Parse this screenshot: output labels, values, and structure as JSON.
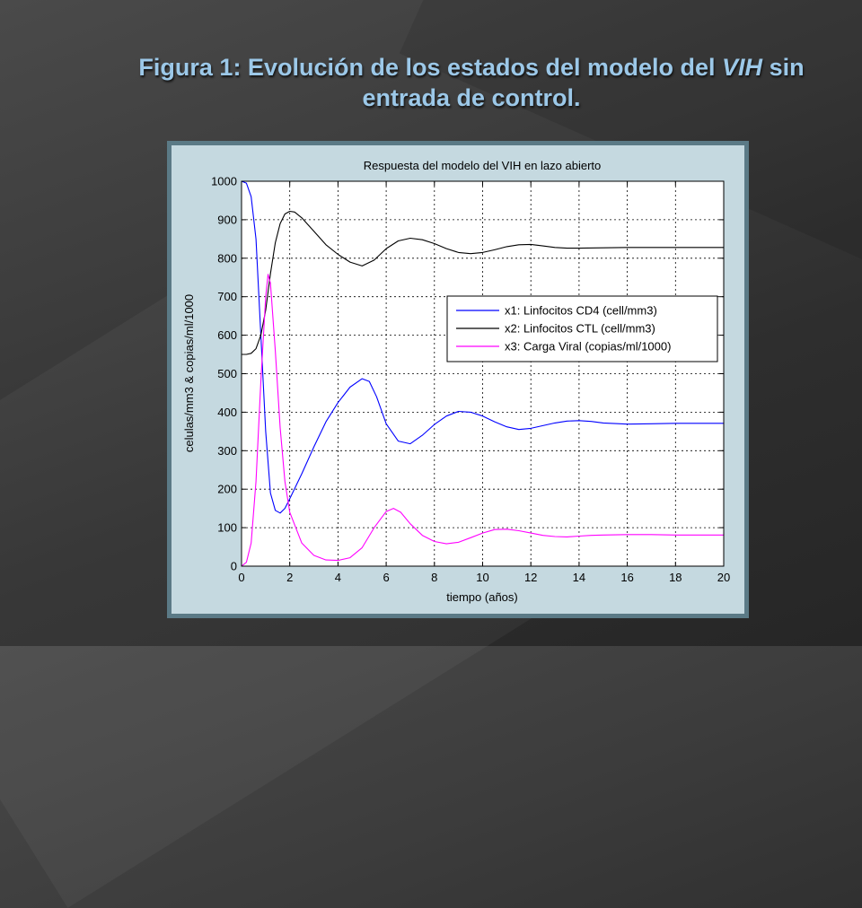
{
  "slide": {
    "title_part1": "Figura 1: Evolución de los estados del modelo del ",
    "title_italic": "VIH",
    "title_part2": " sin",
    "title_line2": "entrada de control."
  },
  "chart_data": {
    "type": "line",
    "title": "Respuesta del modelo del VIH en lazo abierto",
    "xlabel": "tiempo (años)",
    "ylabel": "celulas/mm3 & copias/ml/1000",
    "xlim": [
      0,
      20
    ],
    "ylim": [
      0,
      1000
    ],
    "xticks": [
      0,
      2,
      4,
      6,
      8,
      10,
      12,
      14,
      16,
      18,
      20
    ],
    "yticks": [
      0,
      100,
      200,
      300,
      400,
      500,
      600,
      700,
      800,
      900,
      1000
    ],
    "grid": true,
    "legend_position": "center-right",
    "series": [
      {
        "name": "x1: Linfocitos CD4 (cell/mm3)",
        "color": "#0000ff",
        "x": [
          0,
          0.2,
          0.4,
          0.6,
          0.8,
          1.0,
          1.2,
          1.4,
          1.6,
          1.8,
          2.0,
          2.5,
          3.0,
          3.5,
          4.0,
          4.5,
          5.0,
          5.3,
          5.6,
          6.0,
          6.5,
          7.0,
          7.5,
          8.0,
          8.5,
          9.0,
          9.5,
          10.0,
          10.5,
          11.0,
          11.5,
          12.0,
          12.5,
          13.0,
          13.5,
          14.0,
          14.5,
          15.0,
          16.0,
          17.0,
          18.0,
          19.0,
          20.0
        ],
        "y": [
          1000,
          995,
          960,
          850,
          600,
          350,
          190,
          145,
          138,
          150,
          175,
          240,
          310,
          375,
          425,
          465,
          487,
          480,
          440,
          370,
          325,
          318,
          340,
          368,
          390,
          402,
          400,
          390,
          375,
          362,
          355,
          358,
          365,
          372,
          377,
          378,
          376,
          372,
          369,
          370,
          371,
          371,
          371
        ]
      },
      {
        "name": "x2: Linfocitos CTL (cell/mm3)",
        "color": "#000000",
        "x": [
          0,
          0.2,
          0.4,
          0.6,
          0.8,
          1.0,
          1.2,
          1.4,
          1.6,
          1.8,
          2.0,
          2.2,
          2.5,
          3.0,
          3.5,
          4.0,
          4.5,
          5.0,
          5.5,
          6.0,
          6.5,
          7.0,
          7.5,
          8.0,
          8.5,
          9.0,
          9.5,
          10.0,
          10.5,
          11.0,
          11.5,
          12.0,
          12.5,
          13.0,
          13.5,
          14.0,
          15.0,
          16.0,
          17.0,
          18.0,
          19.0,
          20.0
        ],
        "y": [
          550,
          550,
          553,
          565,
          600,
          665,
          760,
          840,
          890,
          915,
          922,
          920,
          905,
          870,
          835,
          810,
          790,
          780,
          795,
          825,
          845,
          852,
          848,
          838,
          825,
          815,
          812,
          815,
          822,
          830,
          835,
          836,
          832,
          828,
          826,
          826,
          827,
          828,
          828,
          828,
          828,
          828
        ]
      },
      {
        "name": "x3: Carga Viral (copias/ml/1000)",
        "color": "#ff00ff",
        "x": [
          0,
          0.2,
          0.4,
          0.6,
          0.8,
          1.0,
          1.1,
          1.2,
          1.4,
          1.6,
          1.8,
          2.0,
          2.5,
          3.0,
          3.5,
          4.0,
          4.5,
          5.0,
          5.5,
          6.0,
          6.3,
          6.6,
          7.0,
          7.5,
          8.0,
          8.5,
          9.0,
          9.5,
          10.0,
          10.5,
          11.0,
          11.5,
          12.0,
          12.5,
          13.0,
          13.5,
          14.0,
          14.5,
          15.0,
          16.0,
          17.0,
          18.0,
          19.0,
          20.0
        ],
        "y": [
          0,
          10,
          60,
          220,
          480,
          700,
          758,
          735,
          560,
          360,
          220,
          140,
          60,
          28,
          16,
          15,
          22,
          48,
          100,
          142,
          150,
          140,
          110,
          80,
          64,
          58,
          62,
          74,
          86,
          95,
          96,
          92,
          86,
          80,
          77,
          76,
          78,
          80,
          81,
          82,
          82,
          81,
          81,
          81
        ]
      }
    ]
  }
}
